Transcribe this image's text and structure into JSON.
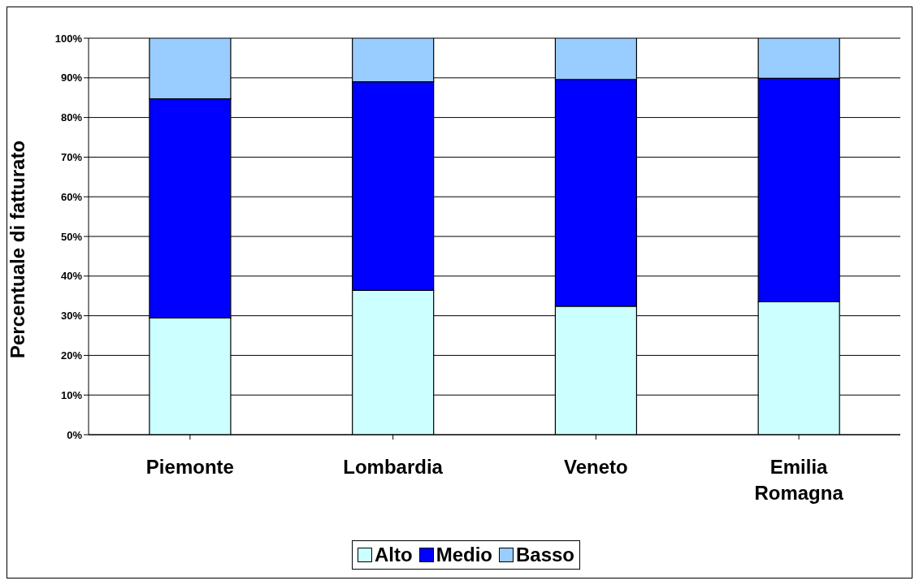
{
  "chart_data": {
    "type": "bar",
    "stacked": true,
    "ylabel": "Percentuale di fatturato",
    "categories": [
      "Piemonte",
      "Lombardia",
      "Veneto",
      "Emilia Romagna"
    ],
    "series": [
      {
        "name": "Alto",
        "color": "#ccffff",
        "values": [
          29.5,
          36.4,
          32.4,
          33.5
        ]
      },
      {
        "name": "Medio",
        "color": "#0000ff",
        "values": [
          55.2,
          52.6,
          57.2,
          56.4
        ]
      },
      {
        "name": "Basso",
        "color": "#99ccff",
        "values": [
          15.3,
          11.0,
          10.4,
          10.1
        ]
      }
    ],
    "ylim": [
      0,
      100
    ],
    "yticks": [
      {
        "value": 0,
        "label": "0%"
      },
      {
        "value": 10,
        "label": "10%"
      },
      {
        "value": 20,
        "label": "20%"
      },
      {
        "value": 30,
        "label": "30%"
      },
      {
        "value": 40,
        "label": "40%"
      },
      {
        "value": 50,
        "label": "50%"
      },
      {
        "value": 60,
        "label": "60%"
      },
      {
        "value": 70,
        "label": "70%"
      },
      {
        "value": 80,
        "label": "80%"
      },
      {
        "value": 90,
        "label": "90%"
      },
      {
        "value": 100,
        "label": "100%"
      }
    ],
    "grid": "y",
    "legend": "bottom"
  }
}
